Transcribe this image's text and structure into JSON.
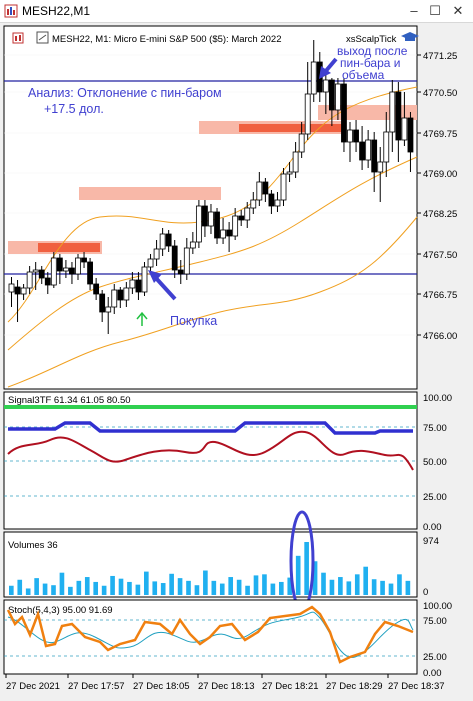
{
  "window": {
    "title": "MESH22,M1",
    "buttons": {
      "minimize": "‒",
      "maximize": "☐",
      "close": "✕"
    }
  },
  "main_chart": {
    "header": "MESH22, M1:  Micro E-mini S&P 500 ($5): March 2022",
    "indicator_name": "xsScalpTick",
    "annotation_analysis_1": "Анализ: Отклонение с пин-баром",
    "annotation_analysis_2": "+17.5 дол.",
    "annotation_buy": "Покупка",
    "annotation_exit_1": "выход после",
    "annotation_exit_2": "пин-бара и",
    "annotation_exit_3": "объема",
    "price_levels": [
      "4771.25",
      "4770.50",
      "4769.75",
      "4769.00",
      "4768.25",
      "4767.50",
      "4766.75",
      "4766.00"
    ]
  },
  "signal_panel": {
    "label": "Signal3TF 61.34 61.05 80.50",
    "levels": [
      "100.00",
      "75.00",
      "50.00",
      "25.00",
      "0.00"
    ]
  },
  "volume_panel": {
    "label": "Volumes 36",
    "levels": [
      "974",
      "0"
    ]
  },
  "stoch_panel": {
    "label": "Stoch(5,4,3) 95.00 91.69",
    "levels": [
      "100.00",
      "75.00",
      "25.00",
      "0.00"
    ]
  },
  "time_axis": [
    "27 Dec 2021",
    "27 Dec 17:57",
    "27 Dec 18:05",
    "27 Dec 18:13",
    "27 Dec 18:21",
    "27 Dec 18:29",
    "27 Dec 18:37"
  ],
  "colors": {
    "bull_candle": "#ffffff",
    "bear_candle": "#000000",
    "envelope": "#f0a020",
    "horizontal_line": "#2020a0",
    "zone_light": "#f8b8a8",
    "zone_strong": "#f06040",
    "signal_green": "#30d050",
    "signal_blue": "#3030d0",
    "signal_red": "#b01020",
    "volume": "#20b0f0",
    "stoch_main": "#f08010",
    "stoch_signal": "#20a0c0",
    "annotation": "#4040d0"
  },
  "chart_data": {
    "type": "candlestick",
    "series": [
      {
        "name": "volume",
        "values": [
          170,
          280,
          120,
          310,
          210,
          180,
          410,
          150,
          260,
          330,
          240,
          170,
          350,
          300,
          240,
          190,
          430,
          250,
          220,
          390,
          310,
          260,
          180,
          450,
          260,
          210,
          330,
          280,
          170,
          360,
          380,
          210,
          240,
          320,
          720,
          974,
          620,
          410,
          280,
          330,
          250,
          380,
          520,
          290,
          260,
          210,
          380,
          260
        ]
      }
    ]
  }
}
